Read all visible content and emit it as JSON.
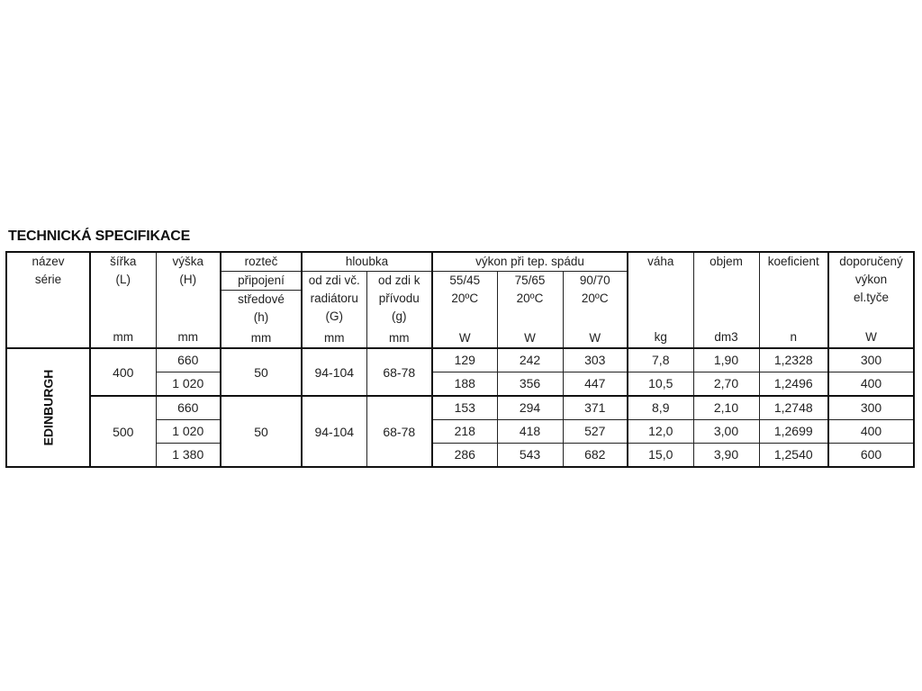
{
  "title": "TECHNICKÁ SPECIFIKACE",
  "headers": {
    "nazev": [
      "název",
      "série"
    ],
    "sirka": [
      "šířka",
      "(L)",
      "mm"
    ],
    "vyska": [
      "výška",
      "(H)",
      "mm"
    ],
    "roztec": [
      "rozteč",
      "připojení",
      "středové",
      "(h)",
      "mm"
    ],
    "hloubka": "hloubka",
    "hloubka_g1": [
      "od zdi  vč.",
      "radiátoru",
      "(G)",
      "mm"
    ],
    "hloubka_g2": [
      "od zdi  k",
      "přívodu",
      "(g)",
      "mm"
    ],
    "vykon": "výkon při tep.  spádu",
    "vykon_1": [
      "55/45",
      "20ºC",
      "W"
    ],
    "vykon_2": [
      "75/65",
      "20ºC",
      "W"
    ],
    "vykon_3": [
      "90/70",
      "20ºC",
      "W"
    ],
    "vaha": [
      "váha",
      "kg"
    ],
    "objem": [
      "objem",
      "dm3"
    ],
    "koeficient": [
      "koeficient",
      "n"
    ],
    "doporuceny": [
      "doporučený",
      "výkon",
      "el.tyče",
      "W"
    ]
  },
  "series": "EDINBURGH",
  "groups": [
    {
      "sirka": "400",
      "roztec": "50",
      "hloubka_G": "94-104",
      "hloubka_g": "68-78",
      "rows": [
        [
          "660",
          "129",
          "242",
          "303",
          "7,8",
          "1,90",
          "1,2328",
          "300"
        ],
        [
          "1 020",
          "188",
          "356",
          "447",
          "10,5",
          "2,70",
          "1,2496",
          "400"
        ]
      ]
    },
    {
      "sirka": "500",
      "roztec": "50",
      "hloubka_G": "94-104",
      "hloubka_g": "68-78",
      "rows": [
        [
          "660",
          "153",
          "294",
          "371",
          "8,9",
          "2,10",
          "1,2748",
          "300"
        ],
        [
          "1 020",
          "218",
          "418",
          "527",
          "12,0",
          "3,00",
          "1,2699",
          "400"
        ],
        [
          "1 380",
          "286",
          "543",
          "682",
          "15,0",
          "3,90",
          "1,2540",
          "600"
        ]
      ]
    }
  ]
}
